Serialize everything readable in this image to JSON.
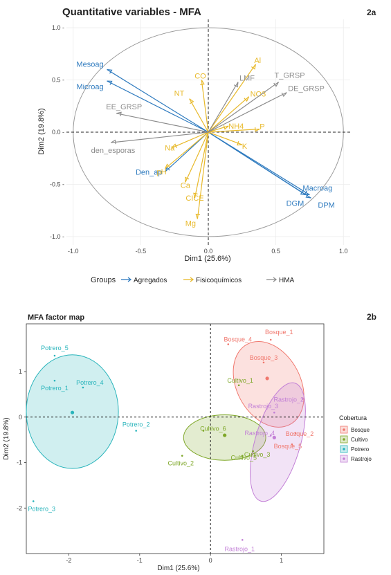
{
  "chart_data": [
    {
      "type": "scatter",
      "subtype": "correlation-circle",
      "panel_label": "2a",
      "title": "Quantitative variables - MFA",
      "xlabel": "Dim1 (25.6%)",
      "ylabel": "Dim2 (19.8%)",
      "xlim": [
        -1.05,
        1.05
      ],
      "ylim": [
        -1.08,
        1.08
      ],
      "x_ticks": [
        -1.0,
        -0.5,
        0.0,
        0.5,
        1.0
      ],
      "x_tick_labels": [
        "-1.0",
        "-0.5",
        "0.0",
        "0.5",
        "1.0"
      ],
      "y_ticks": [
        1.0,
        0.5,
        0.0,
        -0.5,
        -1.0
      ],
      "y_tick_labels": [
        "1.0 -",
        "0.5 -",
        "0.0 -",
        "-0.5 -",
        "-1.0 -"
      ],
      "grid": true,
      "legend": {
        "position": "bottom",
        "title": "Groups",
        "entries": [
          {
            "label": "Agregados",
            "color": "#2f7bbf"
          },
          {
            "label": "Fisicoquímicos",
            "color": "#e8b92a"
          },
          {
            "label": "HMA",
            "color": "#8c8c8c"
          }
        ]
      },
      "series": [
        {
          "name": "Agregados",
          "color": "#2f7bbf",
          "points": [
            {
              "label": "Mesoag",
              "x": -0.75,
              "y": 0.6
            },
            {
              "label": "Microag",
              "x": -0.75,
              "y": 0.49
            },
            {
              "label": "Den_ap",
              "x": -0.32,
              "y": -0.38
            },
            {
              "label": "Macroag",
              "x": 0.75,
              "y": -0.6
            },
            {
              "label": "DGM",
              "x": 0.72,
              "y": -0.6
            },
            {
              "label": "DPM",
              "x": 0.76,
              "y": -0.63
            }
          ]
        },
        {
          "name": "Fisicoquímicos",
          "color": "#e8b92a",
          "points": [
            {
              "label": "CO",
              "x": -0.05,
              "y": 0.5
            },
            {
              "label": "NT",
              "x": -0.14,
              "y": 0.32
            },
            {
              "label": "Al",
              "x": 0.35,
              "y": 0.65
            },
            {
              "label": "NO3",
              "x": 0.3,
              "y": 0.34
            },
            {
              "label": "NH4",
              "x": 0.15,
              "y": 0.06
            },
            {
              "label": "P",
              "x": 0.38,
              "y": 0.03
            },
            {
              "label": "K",
              "x": 0.25,
              "y": -0.12
            },
            {
              "label": "Na",
              "x": -0.27,
              "y": -0.15
            },
            {
              "label": "pH",
              "x": -0.32,
              "y": -0.35
            },
            {
              "label": "Ca",
              "x": -0.17,
              "y": -0.48
            },
            {
              "label": "CICE",
              "x": -0.1,
              "y": -0.63
            },
            {
              "label": "Mg",
              "x": -0.08,
              "y": -0.83
            }
          ]
        },
        {
          "name": "HMA",
          "color": "#8c8c8c",
          "points": [
            {
              "label": "LMF",
              "x": 0.22,
              "y": 0.48
            },
            {
              "label": "T_GRSP",
              "x": 0.52,
              "y": 0.48
            },
            {
              "label": "DE_GRSP",
              "x": 0.58,
              "y": 0.38
            },
            {
              "label": "EE_GRSP",
              "x": -0.68,
              "y": 0.18
            },
            {
              "label": "den_esporas",
              "x": -0.72,
              "y": -0.1
            }
          ]
        }
      ]
    },
    {
      "type": "scatter",
      "subtype": "factor-map",
      "panel_label": "2b",
      "title": "MFA factor map",
      "xlabel": "Dim1 (25.6%)",
      "ylabel": "Dim2 (19.8%)",
      "xlim": [
        -2.6,
        1.6
      ],
      "ylim": [
        -3.0,
        2.05
      ],
      "x_ticks": [
        -2,
        -1,
        0,
        1
      ],
      "x_tick_labels": [
        "-2",
        "-1",
        "0",
        "1"
      ],
      "y_ticks": [
        1,
        0,
        -1,
        -2
      ],
      "y_tick_labels": [
        "1",
        "0",
        "-1",
        "-2"
      ],
      "grid": false,
      "legend": {
        "position": "right",
        "title": "Cobertura",
        "entries": [
          {
            "label": "Bosque",
            "color": "#f0776d"
          },
          {
            "label": "Cultivo",
            "color": "#7ea728"
          },
          {
            "label": "Potrero",
            "color": "#28b4bb"
          },
          {
            "label": "Rastrojo",
            "color": "#c27fd6"
          }
        ]
      },
      "series": [
        {
          "name": "Bosque",
          "color": "#f0776d",
          "centroid": {
            "x": 0.8,
            "y": 0.85
          },
          "ellipse": {
            "cx": 0.82,
            "cy": 0.72,
            "rx": 0.45,
            "ry": 1.0,
            "angle": -28
          },
          "points": [
            {
              "label": "Bosque_1",
              "x": 0.85,
              "y": 1.7
            },
            {
              "label": "Bosque_4",
              "x": 0.25,
              "y": 1.6
            },
            {
              "label": "Bosque_3",
              "x": 0.75,
              "y": 1.2
            },
            {
              "label": "Bosque_2",
              "x": 1.2,
              "y": -0.35
            },
            {
              "label": "Bosque_5",
              "x": 1.15,
              "y": -0.6
            }
          ]
        },
        {
          "name": "Cultivo",
          "color": "#7ea728",
          "centroid": {
            "x": 0.2,
            "y": -0.4
          },
          "ellipse": {
            "cx": 0.2,
            "cy": -0.45,
            "rx": 0.58,
            "ry": 0.5,
            "angle": 0
          },
          "points": [
            {
              "label": "Cultivo_1",
              "x": 0.4,
              "y": 0.7
            },
            {
              "label": "Cultivo_6",
              "x": -0.1,
              "y": -0.3
            },
            {
              "label": "Cultivo_2",
              "x": -0.4,
              "y": -0.85
            },
            {
              "label": "Cultivo_3",
              "x": 0.6,
              "y": -0.75
            },
            {
              "label": "Cultivo_5",
              "x": 0.45,
              "y": -0.85
            }
          ]
        },
        {
          "name": "Potrero",
          "color": "#28b4bb",
          "centroid": {
            "x": -1.95,
            "y": 0.1
          },
          "ellipse": {
            "cx": -1.95,
            "cy": 0.12,
            "rx": 0.65,
            "ry": 1.25,
            "angle": 0
          },
          "points": [
            {
              "label": "Potrero_5",
              "x": -2.2,
              "y": 1.35
            },
            {
              "label": "Potrero_1",
              "x": -2.2,
              "y": 0.8
            },
            {
              "label": "Potrero_4",
              "x": -1.8,
              "y": 0.65
            },
            {
              "label": "Potrero_2",
              "x": -1.05,
              "y": -0.3
            },
            {
              "label": "Potrero_3",
              "x": -2.5,
              "y": -1.85
            }
          ]
        },
        {
          "name": "Rastrojo",
          "color": "#c27fd6",
          "centroid": {
            "x": 0.9,
            "y": -0.45
          },
          "ellipse": {
            "cx": 0.95,
            "cy": -0.55,
            "rx": 0.32,
            "ry": 1.35,
            "angle": 16
          },
          "points": [
            {
              "label": "Rastrojo_2",
              "x": 1.3,
              "y": 0.4
            },
            {
              "label": "Rastrojo_3",
              "x": 0.9,
              "y": 0.1
            },
            {
              "label": "Rastrojo_4",
              "x": 0.85,
              "y": -0.4
            },
            {
              "label": "Rastrojo_1",
              "x": 0.45,
              "y": -2.7
            }
          ]
        }
      ]
    }
  ]
}
